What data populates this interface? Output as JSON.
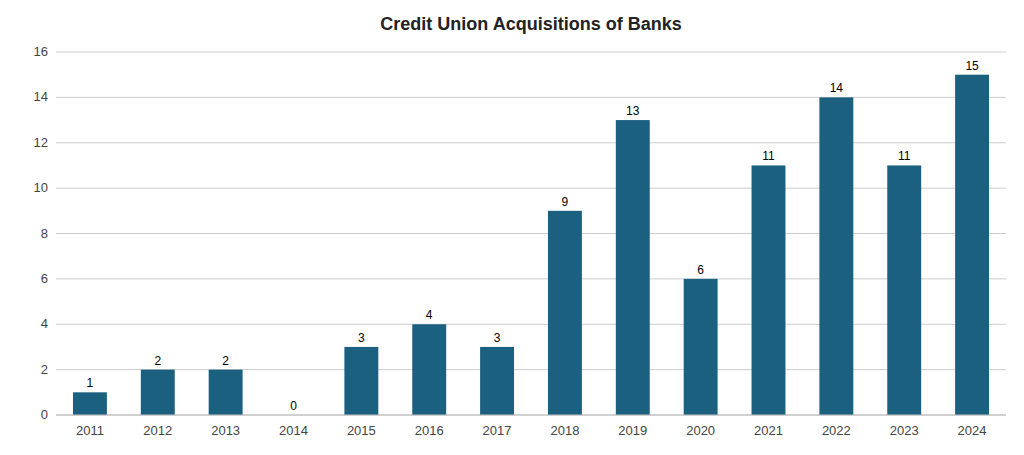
{
  "chart_data": {
    "type": "bar",
    "title": "Credit Union Acquisitions of Banks",
    "categories": [
      "2011",
      "2012",
      "2013",
      "2014",
      "2015",
      "2016",
      "2017",
      "2018",
      "2019",
      "2020",
      "2021",
      "2022",
      "2023",
      "2024"
    ],
    "values": [
      1,
      2,
      2,
      0,
      3,
      4,
      3,
      9,
      13,
      6,
      11,
      14,
      11,
      15
    ],
    "color": "#1c6080",
    "ylim": [
      0,
      16
    ],
    "yticks": [
      0,
      2,
      4,
      6,
      8,
      10,
      12,
      14,
      16
    ],
    "grid": true,
    "data_labels": true
  }
}
